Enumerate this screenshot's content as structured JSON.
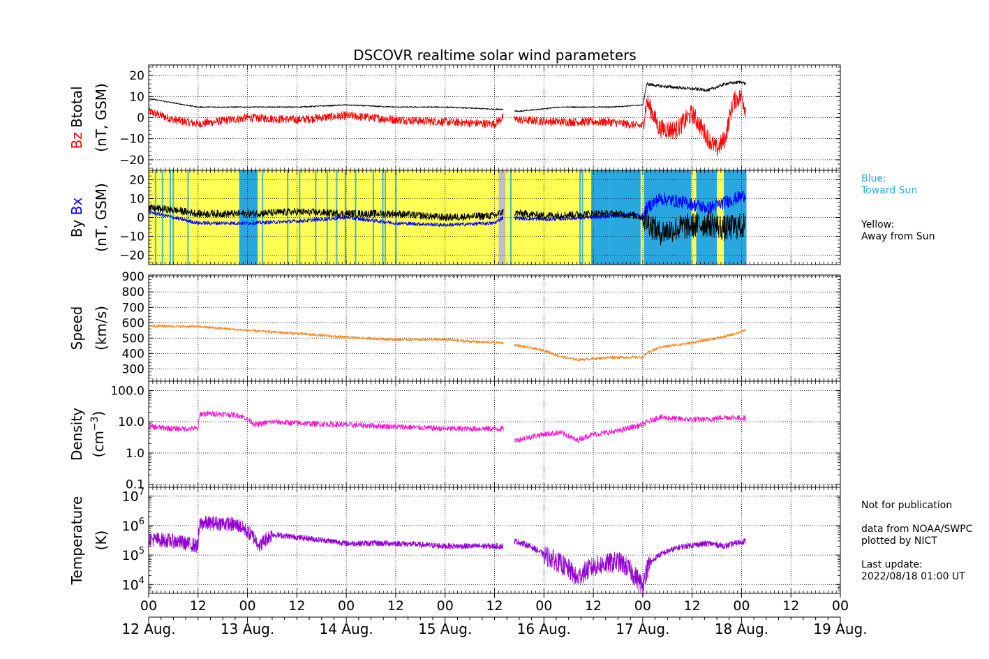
{
  "title": "DSCOVR realtime solar wind parameters",
  "panels": {
    "mag": {
      "label_bz": "Bz",
      "label_btotal": "Btotal",
      "unit": "(nT, GSM)",
      "bz_color": "#ff0000",
      "bt_color": "#000000",
      "yticks": [
        "20",
        "10",
        "0",
        "−10",
        "−20"
      ]
    },
    "bxby": {
      "label_bx": "Bx",
      "label_by": "By",
      "unit": "(nT, GSM)",
      "bx_color": "#0000ff",
      "by_color": "#000000",
      "yticks": [
        "20",
        "10",
        "0",
        "−10",
        "−20"
      ]
    },
    "speed": {
      "label": "Speed",
      "unit": "(km/s)",
      "color": "#ff7f0e",
      "yticks": [
        "900",
        "800",
        "700",
        "600",
        "500",
        "400",
        "300"
      ]
    },
    "density": {
      "label": "Density",
      "unit_main": "(cm",
      "unit_sup": "−3",
      "unit_end": ")",
      "color": "#ff10d0",
      "yticks": [
        "100.0",
        "10.0",
        "1.0",
        "0.1"
      ]
    },
    "temperature": {
      "label": "Temperature",
      "unit": "(K)",
      "color": "#9400d3",
      "ytick_base": "10",
      "ytick_exps": [
        "7",
        "6",
        "5",
        "4"
      ]
    }
  },
  "xaxis": {
    "ticks": [
      "00",
      "12",
      "00",
      "12",
      "00",
      "12",
      "00",
      "12",
      "00",
      "12",
      "00",
      "12",
      "00",
      "12",
      "00"
    ],
    "dates": [
      "12 Aug.",
      "13 Aug.",
      "14 Aug.",
      "15 Aug.",
      "16 Aug.",
      "17 Aug.",
      "18 Aug.",
      "19 Aug."
    ]
  },
  "legend_sector": {
    "blue_title": "Blue:",
    "blue_desc": "Toward Sun",
    "yellow_title": "Yellow:",
    "yellow_desc": "Away from Sun",
    "toward_color": "#29a8e0",
    "away_color": "#ffff55",
    "gap_color": "#c0c0c0"
  },
  "notes": {
    "not_for_pub": "Not for publication",
    "data_from": "data from NOAA/SWPC",
    "plotted_by": "plotted by NICT",
    "last_update_label": "Last update:",
    "last_update": "2022/08/18 01:00 UT"
  },
  "chart_data": [
    {
      "type": "line",
      "title": "DSCOVR realtime solar wind parameters",
      "xlabel": "",
      "ylabel": "Bz Btotal (nT, GSM)",
      "x_unit": "hours since 12 Aug. 00 UT",
      "xlim": [
        0,
        168
      ],
      "ylim": [
        -25,
        25
      ],
      "series": [
        {
          "name": "Btotal",
          "x": [
            0,
            6,
            12,
            24,
            36,
            48,
            60,
            72,
            84,
            86,
            90,
            100,
            112,
            120,
            121,
            124,
            130,
            136,
            140,
            144,
            145
          ],
          "y": [
            9,
            7,
            5,
            5,
            5,
            6,
            5,
            5,
            4,
            4,
            3,
            5,
            5,
            6,
            16,
            15,
            14,
            13,
            16,
            17,
            16
          ]
        },
        {
          "name": "Bz",
          "x": [
            0,
            6,
            12,
            24,
            36,
            48,
            60,
            72,
            84,
            86,
            90,
            100,
            112,
            120,
            121,
            124,
            128,
            132,
            136,
            138,
            140,
            142,
            144,
            145
          ],
          "y": [
            3,
            -1,
            -3,
            0,
            -1,
            1,
            -1,
            -2,
            -3,
            0,
            -1,
            -2,
            -2,
            -4,
            8,
            -5,
            -6,
            2,
            -10,
            -15,
            -10,
            8,
            10,
            4
          ]
        }
      ]
    },
    {
      "type": "line",
      "ylabel": "By Bx (nT, GSM)",
      "x_unit": "hours since 12 Aug. 00 UT",
      "xlim": [
        0,
        168
      ],
      "ylim": [
        -25,
        25
      ],
      "series": [
        {
          "name": "Bx",
          "x": [
            0,
            12,
            24,
            36,
            48,
            60,
            72,
            84,
            86,
            96,
            108,
            114,
            118,
            120,
            121,
            124,
            130,
            136,
            140,
            145
          ],
          "y": [
            3,
            -3,
            -3,
            -2,
            0,
            -3,
            -4,
            -3,
            0,
            -1,
            0,
            1,
            2,
            0,
            5,
            10,
            8,
            5,
            8,
            12
          ]
        },
        {
          "name": "By",
          "x": [
            0,
            6,
            12,
            24,
            36,
            48,
            60,
            72,
            84,
            86,
            96,
            108,
            114,
            118,
            120,
            121,
            124,
            130,
            136,
            140,
            145
          ],
          "y": [
            5,
            4,
            2,
            2,
            3,
            2,
            2,
            0,
            1,
            3,
            1,
            2,
            2,
            1,
            0,
            -2,
            -8,
            -5,
            -3,
            -6,
            -4
          ]
        }
      ]
    },
    {
      "type": "line",
      "ylabel": "Speed (km/s)",
      "x_unit": "hours since 12 Aug. 00 UT",
      "xlim": [
        0,
        168
      ],
      "ylim": [
        220,
        910
      ],
      "series": [
        {
          "name": "Speed",
          "x": [
            0,
            12,
            24,
            36,
            48,
            60,
            72,
            80,
            86,
            88,
            96,
            100,
            104,
            108,
            112,
            120,
            121,
            124,
            132,
            136,
            140,
            145
          ],
          "y": [
            580,
            575,
            550,
            530,
            505,
            490,
            490,
            475,
            470,
            460,
            420,
            380,
            360,
            365,
            375,
            375,
            400,
            440,
            470,
            490,
            510,
            550
          ]
        }
      ]
    },
    {
      "type": "line",
      "ylabel": "Density (cm−3)",
      "yscale": "log",
      "x_unit": "hours since 12 Aug. 00 UT",
      "xlim": [
        0,
        168
      ],
      "ylim": [
        0.08,
        200
      ],
      "series": [
        {
          "name": "Density",
          "x": [
            0,
            6,
            12,
            12.5,
            18,
            22,
            26,
            30,
            36,
            48,
            60,
            72,
            86,
            89,
            96,
            100,
            104,
            108,
            114,
            120,
            124,
            130,
            136,
            140,
            145
          ],
          "y": [
            7,
            6,
            6,
            18,
            18,
            16,
            8,
            10,
            9,
            8,
            7,
            6,
            6,
            2.5,
            4,
            4.5,
            2.5,
            4,
            5,
            8,
            14,
            12,
            12,
            14,
            13
          ]
        }
      ]
    },
    {
      "type": "line",
      "ylabel": "Temperature (K)",
      "yscale": "log",
      "x_unit": "hours since 12 Aug. 00 UT",
      "xlim": [
        0,
        168
      ],
      "ylim": [
        5000,
        20000000
      ],
      "series": [
        {
          "name": "Temperature",
          "x": [
            0,
            6,
            12,
            12.5,
            18,
            22,
            24,
            27,
            30,
            36,
            48,
            60,
            72,
            86,
            89,
            96,
            100,
            104,
            108,
            114,
            118,
            120,
            124,
            130,
            136,
            140,
            145
          ],
          "y": [
            350000,
            300000,
            200000,
            1200000,
            1200000,
            1000000,
            600000,
            200000,
            500000,
            400000,
            250000,
            250000,
            200000,
            200000,
            300000,
            100000,
            50000,
            15000,
            40000,
            60000,
            20000,
            8000,
            100000,
            200000,
            250000,
            200000,
            300000
          ]
        }
      ]
    }
  ]
}
